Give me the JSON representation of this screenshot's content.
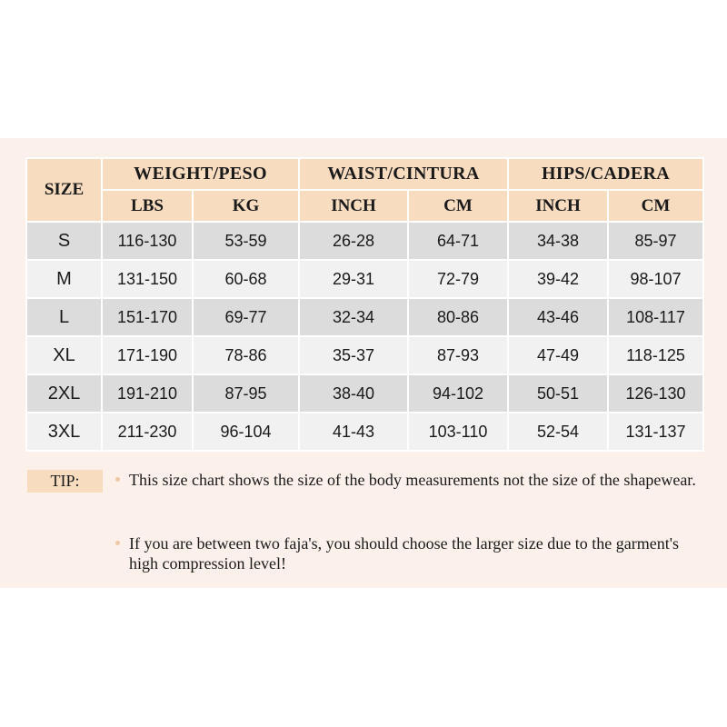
{
  "header": {
    "size_label": "SIZE",
    "groups": [
      "WEIGHT/PESO",
      "WAIST/CINTURA",
      "HIPS/CADERA"
    ],
    "subheaders": [
      "LBS",
      "KG",
      "INCH",
      "CM",
      "INCH",
      "CM"
    ]
  },
  "table": {
    "rows": [
      [
        "S",
        "116-130",
        "53-59",
        "26-28",
        "64-71",
        "34-38",
        "85-97"
      ],
      [
        "M",
        "131-150",
        "60-68",
        "29-31",
        "72-79",
        "39-42",
        "98-107"
      ],
      [
        "L",
        "151-170",
        "69-77",
        "32-34",
        "80-86",
        "43-46",
        "108-117"
      ],
      [
        "XL",
        "171-190",
        "78-86",
        "35-37",
        "87-93",
        "47-49",
        "118-125"
      ],
      [
        "2XL",
        "191-210",
        "87-95",
        "38-40",
        "94-102",
        "50-51",
        "126-130"
      ],
      [
        "3XL",
        "211-230",
        "96-104",
        "41-43",
        "103-110",
        "52-54",
        "131-137"
      ]
    ]
  },
  "tips": {
    "label": "TIP:",
    "items": [
      "This size chart shows the size of the body measurements not the size of the shapewear.",
      "If you are between two faja's, you should choose the larger size due to the garment's high compression level!"
    ]
  }
}
